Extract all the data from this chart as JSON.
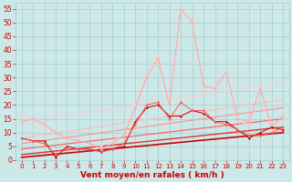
{
  "bg_color": "#cce8e8",
  "grid_color": "#aacccc",
  "xlim": [
    -0.5,
    23.5
  ],
  "ylim": [
    0,
    57
  ],
  "yticks": [
    0,
    5,
    10,
    15,
    20,
    25,
    30,
    35,
    40,
    45,
    50,
    55
  ],
  "xticks": [
    0,
    1,
    2,
    3,
    4,
    5,
    6,
    7,
    8,
    9,
    10,
    11,
    12,
    13,
    14,
    15,
    16,
    17,
    18,
    19,
    20,
    21,
    22,
    23
  ],
  "xlabel": "Vent moyen/en rafales ( km/h )",
  "lines": [
    {
      "x": [
        0,
        1,
        2,
        3,
        4,
        5,
        6,
        7,
        8,
        9,
        10,
        11,
        12,
        13,
        14,
        15,
        16,
        17,
        18,
        19,
        20,
        21,
        22,
        23
      ],
      "y": [
        8,
        7,
        7,
        1,
        5,
        4,
        4,
        3,
        4,
        5,
        14,
        19,
        20,
        16,
        16,
        18,
        17,
        14,
        14,
        11,
        8,
        10,
        12,
        11
      ],
      "color": "#cc0000",
      "lw": 0.7,
      "marker": "D",
      "ms": 1.5,
      "zorder": 5
    },
    {
      "x": [
        0,
        1,
        2,
        3,
        4,
        5,
        6,
        7,
        8,
        9,
        10,
        11,
        12,
        13,
        14,
        15,
        16,
        17,
        18,
        19,
        20,
        21,
        22,
        23
      ],
      "y": [
        8,
        7,
        6,
        2,
        4,
        4,
        4,
        3,
        4,
        6,
        13,
        20,
        21,
        15,
        21,
        18,
        18,
        14,
        13,
        11,
        9,
        9,
        10,
        12
      ],
      "color": "#ff5555",
      "lw": 0.7,
      "marker": "D",
      "ms": 1.5,
      "zorder": 5
    },
    {
      "x": [
        0,
        1,
        2,
        3,
        4,
        5,
        6,
        7,
        8,
        9,
        10,
        11,
        12,
        13,
        14,
        15,
        16,
        17,
        18,
        19,
        20,
        21,
        22,
        23
      ],
      "y": [
        14,
        15,
        13,
        10,
        8,
        7,
        6,
        4,
        6,
        9,
        19,
        30,
        37,
        20,
        55,
        50,
        27,
        26,
        32,
        15,
        14,
        26,
        12,
        16
      ],
      "color": "#ffaaaa",
      "lw": 0.8,
      "marker": "D",
      "ms": 1.5,
      "zorder": 4
    },
    {
      "x": [
        0,
        1,
        2,
        3,
        4,
        5,
        6,
        7,
        8,
        9,
        10,
        11,
        12,
        13,
        14,
        15,
        16,
        17,
        18,
        19,
        20,
        21,
        22,
        23
      ],
      "y": [
        16,
        15,
        12,
        10,
        8,
        7,
        6,
        5,
        7,
        9,
        20,
        31,
        38,
        20,
        54,
        51,
        26,
        27,
        32,
        14,
        13,
        27,
        11,
        15
      ],
      "color": "#ffcccc",
      "lw": 0.7,
      "marker": "D",
      "ms": 1.2,
      "zorder": 3
    },
    {
      "x": [
        0,
        23
      ],
      "y": [
        1,
        10
      ],
      "color": "#cc0000",
      "lw": 1.2,
      "marker": null,
      "ms": 0,
      "zorder": 2
    },
    {
      "x": [
        0,
        23
      ],
      "y": [
        2,
        12
      ],
      "color": "#dd3333",
      "lw": 1.0,
      "marker": null,
      "ms": 0,
      "zorder": 2
    },
    {
      "x": [
        0,
        23
      ],
      "y": [
        4,
        15
      ],
      "color": "#ff6666",
      "lw": 0.9,
      "marker": null,
      "ms": 0,
      "zorder": 2
    },
    {
      "x": [
        0,
        23
      ],
      "y": [
        6,
        19
      ],
      "color": "#ff9999",
      "lw": 0.9,
      "marker": null,
      "ms": 0,
      "zorder": 2
    },
    {
      "x": [
        0,
        23
      ],
      "y": [
        8,
        22
      ],
      "color": "#ffbbbb",
      "lw": 0.8,
      "marker": null,
      "ms": 0,
      "zorder": 2
    },
    {
      "x": [
        0,
        23
      ],
      "y": [
        14,
        28
      ],
      "color": "#ffcccc",
      "lw": 0.8,
      "marker": null,
      "ms": 0,
      "zorder": 2
    }
  ],
  "xlabel_color": "#cc0000",
  "xlabel_fontsize": 6.5,
  "tick_color": "#cc0000",
  "ytick_fontsize": 5.5,
  "xtick_fontsize": 5.0
}
